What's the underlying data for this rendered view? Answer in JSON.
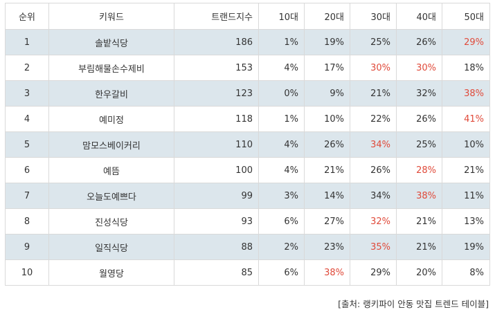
{
  "table": {
    "headers": [
      "순위",
      "키워드",
      "트랜드지수",
      "10대",
      "20대",
      "30대",
      "40대",
      "50대"
    ],
    "rows": [
      {
        "rank": "1",
        "keyword": "솔밭식당",
        "index": "186",
        "a10": "1%",
        "a20": "19%",
        "a30": "25%",
        "a40": "26%",
        "a50": "29%",
        "hl": "a50"
      },
      {
        "rank": "2",
        "keyword": "부림해물손수제비",
        "index": "153",
        "a10": "4%",
        "a20": "17%",
        "a30": "30%",
        "a40": "30%",
        "a50": "18%",
        "hl": "a30,a40"
      },
      {
        "rank": "3",
        "keyword": "한우갈비",
        "index": "123",
        "a10": "0%",
        "a20": "9%",
        "a30": "21%",
        "a40": "32%",
        "a50": "38%",
        "hl": "a50"
      },
      {
        "rank": "4",
        "keyword": "예미정",
        "index": "118",
        "a10": "1%",
        "a20": "10%",
        "a30": "22%",
        "a40": "26%",
        "a50": "41%",
        "hl": "a50"
      },
      {
        "rank": "5",
        "keyword": "맘모스베이커리",
        "index": "110",
        "a10": "4%",
        "a20": "26%",
        "a30": "34%",
        "a40": "25%",
        "a50": "10%",
        "hl": "a30"
      },
      {
        "rank": "6",
        "keyword": "예뜸",
        "index": "100",
        "a10": "4%",
        "a20": "21%",
        "a30": "26%",
        "a40": "28%",
        "a50": "21%",
        "hl": "a40"
      },
      {
        "rank": "7",
        "keyword": "오늘도예쁘다",
        "index": "99",
        "a10": "3%",
        "a20": "14%",
        "a30": "34%",
        "a40": "38%",
        "a50": "11%",
        "hl": "a40"
      },
      {
        "rank": "8",
        "keyword": "진성식당",
        "index": "93",
        "a10": "6%",
        "a20": "27%",
        "a30": "32%",
        "a40": "21%",
        "a50": "13%",
        "hl": "a30"
      },
      {
        "rank": "9",
        "keyword": "일직식당",
        "index": "88",
        "a10": "2%",
        "a20": "23%",
        "a30": "35%",
        "a40": "21%",
        "a50": "19%",
        "hl": "a30"
      },
      {
        "rank": "10",
        "keyword": "월영당",
        "index": "85",
        "a10": "6%",
        "a20": "38%",
        "a30": "29%",
        "a40": "20%",
        "a50": "8%",
        "hl": "a20"
      }
    ]
  },
  "source": "[출처: 랭키파이 안동 맛집 트렌드 테이블]",
  "colors": {
    "shade_row": "#dce6ec",
    "highlight_text": "#e04a3a",
    "border": "#d9d9d9"
  }
}
